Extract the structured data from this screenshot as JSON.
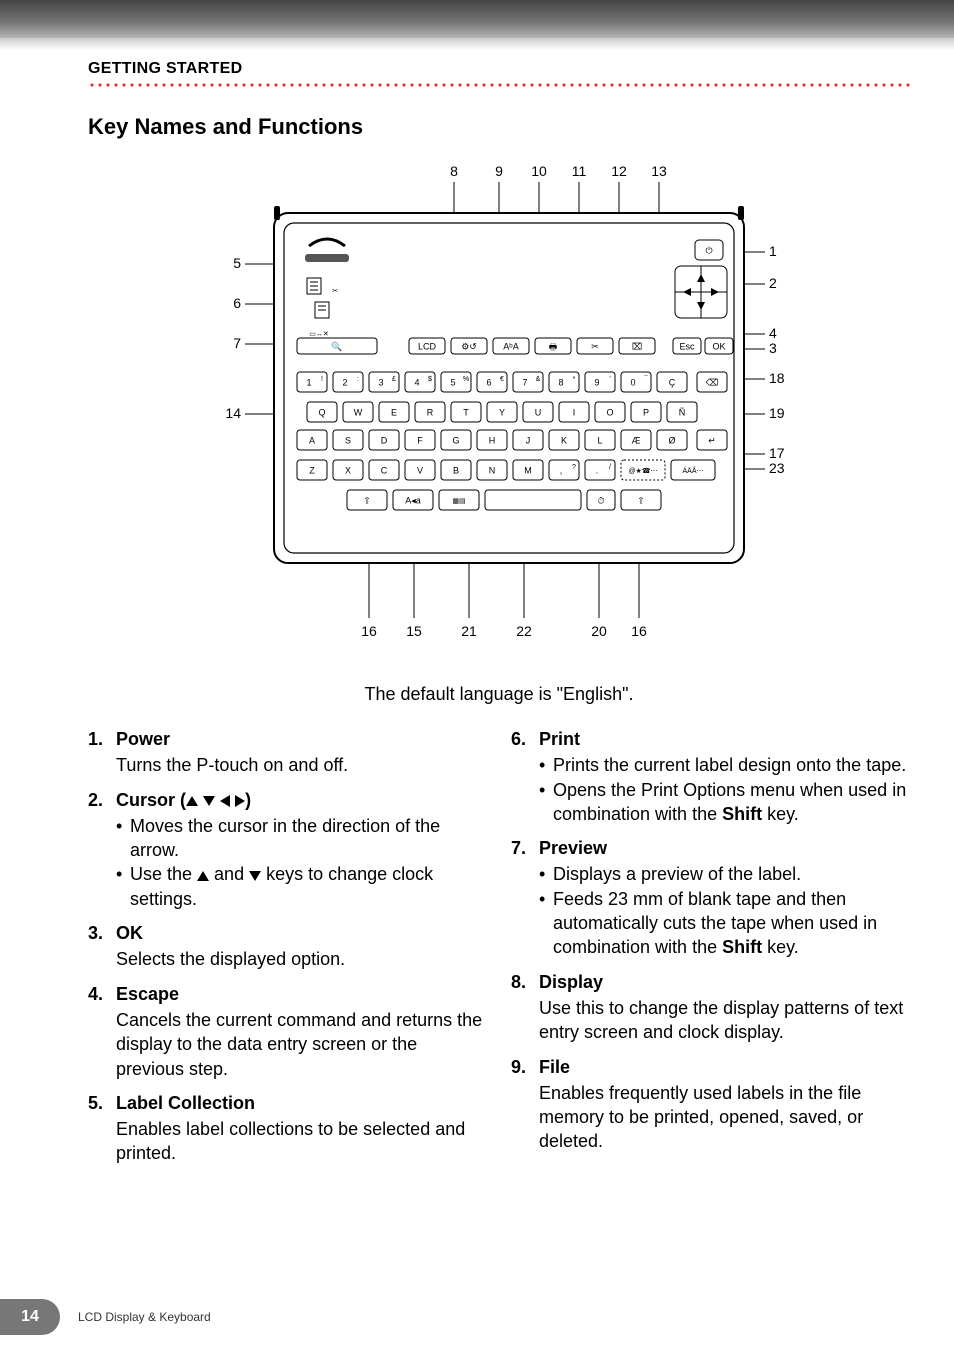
{
  "header": {
    "section": "GETTING STARTED"
  },
  "title": "Key Names and Functions",
  "diagram": {
    "caption": "The default language is \"English\".",
    "top_labels": [
      "8",
      "9",
      "10",
      "11",
      "12",
      "13"
    ],
    "left_labels": [
      "5",
      "6",
      "7",
      "14"
    ],
    "right_labels": [
      "1",
      "2",
      "4",
      "3",
      "18",
      "19",
      "17",
      "23"
    ],
    "bottom_labels": [
      "16",
      "15",
      "21",
      "22",
      "20",
      "16"
    ],
    "frame_bg": "#ffffff",
    "key_fill": "#ffffff",
    "key_stroke": "#000000",
    "line_color": "#000000",
    "row_numbers": [
      "1",
      "2",
      "3",
      "4",
      "5",
      "6",
      "7",
      "8",
      "9",
      "0",
      "Ç"
    ],
    "row_num_super": [
      "!",
      ":",
      "£",
      "$",
      "%",
      "€",
      "&",
      "*",
      "'",
      "¯",
      ""
    ],
    "row_q": [
      "Q",
      "W",
      "E",
      "R",
      "T",
      "Y",
      "U",
      "I",
      "O",
      "P",
      "Ñ"
    ],
    "row_a": [
      "A",
      "S",
      "D",
      "F",
      "G",
      "H",
      "J",
      "K",
      "L",
      "Æ",
      "Ø"
    ],
    "row_z": [
      "Z",
      "X",
      "C",
      "V",
      "B",
      "N",
      "M",
      ",",
      "."
    ],
    "row_z_super": [
      "",
      "",
      "",
      "",
      "",
      "",
      "",
      "?",
      "/"
    ],
    "sym_key": "@★☎⋯",
    "accent_key": "ÁÄÂ⋯",
    "caps_key": "A◂a",
    "func_left": "⇧",
    "func_right": "⇧",
    "space_key": "",
    "time_key": "⏱",
    "label_keys": [
      "LCD",
      "⚙↺",
      "AᵇA",
      "🖶",
      "✂",
      "⌧"
    ],
    "esc_key": "Esc",
    "ok_key": "OK",
    "preview_key": "🔍",
    "power": "⏻",
    "backspace": "⌫",
    "enter": "↵",
    "file_icons": [
      "📄",
      "✂"
    ],
    "label_coll_icon": "📄",
    "display_icons": "▭↔✕"
  },
  "left_list": [
    {
      "n": "1.",
      "title": "Power",
      "desc": "Turns the P-touch on and off."
    },
    {
      "n": "2.",
      "title_prefix": "Cursor (",
      "title_suffix": ")",
      "subs": [
        "Moves the cursor in the direction of the arrow.",
        "Use the  and  keys to change clock settings."
      ],
      "sub2_pre": "Use the ",
      "sub2_mid": " and ",
      "sub2_post": " keys to change clock settings."
    },
    {
      "n": "3.",
      "title": "OK",
      "desc": "Selects the displayed option."
    },
    {
      "n": "4.",
      "title": "Escape",
      "desc": "Cancels the current command and returns the display to the data entry screen or the previous step."
    },
    {
      "n": "5.",
      "title": "Label Collection",
      "desc": "Enables label collections to be selected and printed."
    }
  ],
  "right_list": [
    {
      "n": "6.",
      "title": "Print",
      "subs": [
        "Prints the current label design onto the tape.",
        {
          "pre": "Opens the Print Options menu when used in combination with the ",
          "bold": "Shift",
          "post": " key."
        }
      ]
    },
    {
      "n": "7.",
      "title": "Preview",
      "subs": [
        "Displays a preview of the label.",
        {
          "pre": "Feeds 23 mm of blank tape and then automatically cuts the tape when used in combination with the ",
          "bold": "Shift",
          "post": " key."
        }
      ]
    },
    {
      "n": "8.",
      "title": "Display",
      "desc": "Use this to change the display patterns of text entry screen and clock display."
    },
    {
      "n": "9.",
      "title": "File",
      "desc": "Enables frequently used labels in the file memory to be printed, opened, saved, or deleted."
    }
  ],
  "footer": {
    "page_number": "14",
    "text": "LCD Display & Keyboard"
  }
}
